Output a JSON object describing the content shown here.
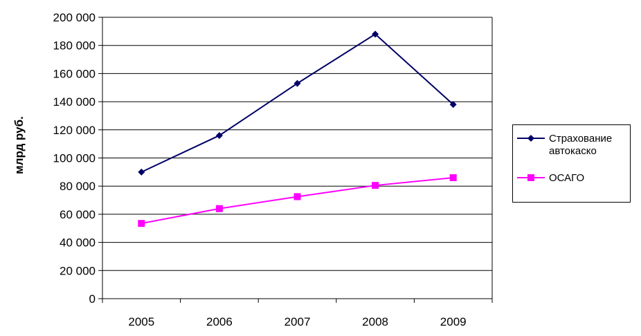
{
  "chart_data": {
    "type": "line",
    "categories": [
      "2005",
      "2006",
      "2007",
      "2008",
      "2009"
    ],
    "series": [
      {
        "name": "Страхование автокаско",
        "values": [
          90000,
          116000,
          153000,
          188000,
          138000
        ],
        "color": "#000066",
        "marker": "diamond"
      },
      {
        "name": "ОСАГО",
        "values": [
          53500,
          64000,
          72500,
          80500,
          86000
        ],
        "color": "#ff00ff",
        "marker": "square"
      }
    ],
    "ylabel": "млрд руб.",
    "ylim": [
      0,
      200000
    ],
    "yticks": [
      "0",
      "20 000",
      "40 000",
      "60 000",
      "80 000",
      "100 000",
      "120 000",
      "140 000",
      "160 000",
      "180 000",
      "200 000"
    ],
    "grid": true,
    "legend": "right"
  }
}
